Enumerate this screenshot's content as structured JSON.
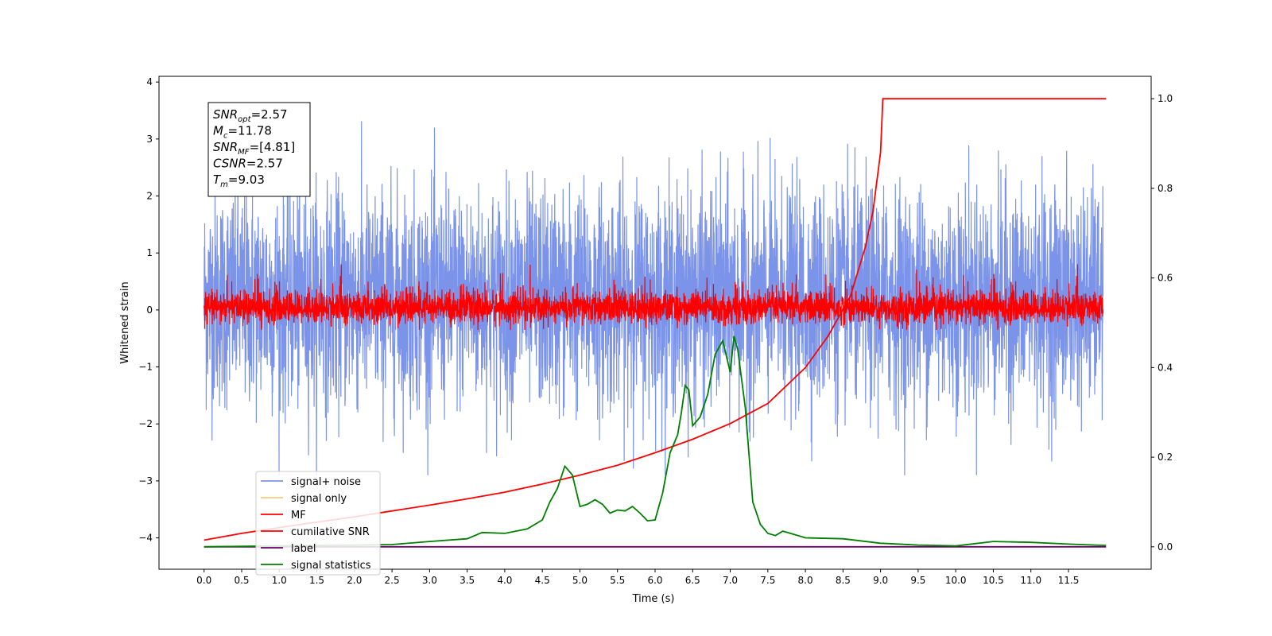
{
  "chart_data": {
    "type": "line",
    "xlabel": "Time (s)",
    "ylabel": "Whitened strain",
    "xlim": [
      -0.6,
      12.6
    ],
    "ylim": [
      -4.55,
      4.1
    ],
    "y2lim": [
      -0.05,
      1.05
    ],
    "x_ticks": [
      0.0,
      0.5,
      1.0,
      1.5,
      2.0,
      2.5,
      3.0,
      3.5,
      4.0,
      4.5,
      5.0,
      5.5,
      6.0,
      6.5,
      7.0,
      7.5,
      8.0,
      8.5,
      9.0,
      9.5,
      10.0,
      10.5,
      11.0,
      11.5
    ],
    "x_tick_labels": [
      "0.0",
      "0.5",
      "1.0",
      "1.5",
      "2.0",
      "2.5",
      "3.0",
      "3.5",
      "4.0",
      "4.5",
      "5.0",
      "5.5",
      "6.0",
      "6.5",
      "7.0",
      "7.5",
      "8.0",
      "8.5",
      "9.0",
      "9.5",
      "10.0",
      "10.5",
      "11.0",
      "11.5"
    ],
    "y_ticks": [
      4,
      3,
      2,
      1,
      0,
      -1,
      -2,
      -3,
      -4
    ],
    "y_tick_labels": [
      "4",
      "3",
      "2",
      "1",
      "0",
      "−1",
      "−2",
      "−3",
      "−4"
    ],
    "y2_ticks": [
      1.0,
      0.8,
      0.6,
      0.4,
      0.2,
      0.0
    ],
    "y2_tick_labels": [
      "1.0",
      "0.8",
      "0.6",
      "0.4",
      "0.2",
      "0.0"
    ],
    "grid": false,
    "legend_position": "lower-left",
    "annotation_box": [
      {
        "name": "SNR",
        "sub": "opt",
        "value": "=2.57"
      },
      {
        "name": "M",
        "sub": "c",
        "value": "=11.78"
      },
      {
        "name": "SNR",
        "sub": "MF",
        "value": "=[4.81]"
      },
      {
        "name": "CSNR",
        "sub": "",
        "value": "=2.57"
      },
      {
        "name": "T",
        "sub": "m",
        "value": "=9.03"
      }
    ],
    "series": [
      {
        "name": "signal+ noise",
        "color": "#7b93e8",
        "axis": "left",
        "kind": "noise",
        "x_range": [
          0,
          12
        ],
        "typical_range": [
          -2.9,
          3.7
        ]
      },
      {
        "name": "signal only",
        "color": "#f5c97a",
        "axis": "left",
        "kind": "flat",
        "value": 0
      },
      {
        "name": "MF",
        "color": "#ff0000",
        "axis": "left",
        "kind": "noise",
        "x_range": [
          0,
          12
        ],
        "typical_range": [
          -0.35,
          0.8
        ]
      },
      {
        "name": "cumilative SNR",
        "color": "#ff0000",
        "axis": "right",
        "x": [
          0.0,
          0.5,
          1.0,
          1.5,
          2.0,
          2.5,
          3.0,
          3.5,
          4.0,
          4.5,
          5.0,
          5.5,
          6.0,
          6.5,
          7.0,
          7.5,
          8.0,
          8.3,
          8.6,
          8.8,
          8.9,
          9.0,
          9.03,
          12.0
        ],
        "y": [
          0.015,
          0.03,
          0.043,
          0.055,
          0.067,
          0.08,
          0.093,
          0.107,
          0.122,
          0.14,
          0.16,
          0.182,
          0.21,
          0.24,
          0.275,
          0.32,
          0.4,
          0.47,
          0.56,
          0.67,
          0.75,
          0.88,
          1.0,
          1.0
        ]
      },
      {
        "name": "label",
        "color": "#6a006a",
        "axis": "right",
        "x": [
          0,
          12
        ],
        "y": [
          0,
          0
        ]
      },
      {
        "name": "signal statistics",
        "color": "#008000",
        "axis": "right",
        "x": [
          0,
          1,
          2,
          2.5,
          3,
          3.5,
          3.7,
          4,
          4.3,
          4.5,
          4.6,
          4.7,
          4.8,
          4.9,
          5.0,
          5.1,
          5.2,
          5.3,
          5.4,
          5.5,
          5.6,
          5.7,
          5.8,
          5.9,
          6.0,
          6.1,
          6.2,
          6.3,
          6.35,
          6.4,
          6.45,
          6.5,
          6.55,
          6.6,
          6.7,
          6.8,
          6.9,
          7.0,
          7.05,
          7.1,
          7.2,
          7.3,
          7.4,
          7.5,
          7.6,
          7.7,
          7.8,
          8.0,
          8.5,
          9.0,
          9.5,
          10.0,
          10.5,
          11.0,
          11.5,
          12.0
        ],
        "y": [
          0.0,
          0.002,
          0.004,
          0.005,
          0.012,
          0.018,
          0.032,
          0.03,
          0.04,
          0.06,
          0.1,
          0.13,
          0.18,
          0.16,
          0.09,
          0.095,
          0.105,
          0.095,
          0.075,
          0.082,
          0.08,
          0.09,
          0.075,
          0.058,
          0.06,
          0.12,
          0.21,
          0.25,
          0.3,
          0.36,
          0.35,
          0.27,
          0.28,
          0.29,
          0.34,
          0.43,
          0.46,
          0.39,
          0.47,
          0.44,
          0.31,
          0.1,
          0.05,
          0.03,
          0.025,
          0.035,
          0.03,
          0.02,
          0.018,
          0.008,
          0.004,
          0.002,
          0.012,
          0.01,
          0.006,
          0.003
        ]
      }
    ]
  }
}
